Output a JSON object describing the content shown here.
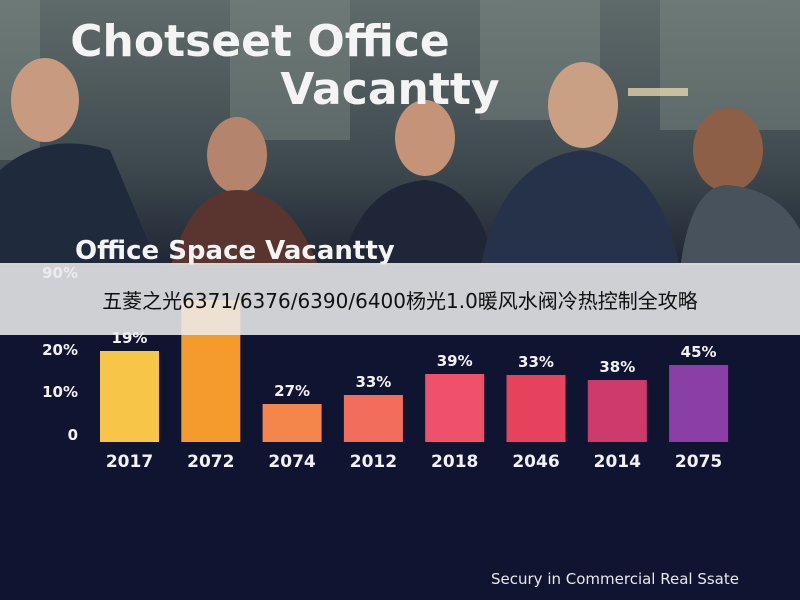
{
  "header": {
    "title_lines": [
      "Chotseet Office",
      "Vacantty"
    ]
  },
  "chart": {
    "title": "Office Space Vacantty",
    "y_axis_labels": [
      "90%",
      "20%",
      "10%",
      "0"
    ],
    "bars": [
      {
        "year": "2017",
        "label": "19%"
      },
      {
        "year": "2072"
      },
      {
        "year": "2074",
        "label": "27%"
      },
      {
        "year": "2012",
        "label": "33%"
      },
      {
        "year": "2018",
        "label": "39%"
      },
      {
        "year": "2046",
        "label": "33%"
      },
      {
        "year": "2014",
        "label": "38%"
      },
      {
        "year": "2075",
        "label": "45%"
      }
    ]
  },
  "banner": {
    "text": "五菱之光6371/6376/6390/6400杨光1.0暖风水阀冷热控制全攻略"
  },
  "footer": "Secury in Commercial Real Ssate"
}
